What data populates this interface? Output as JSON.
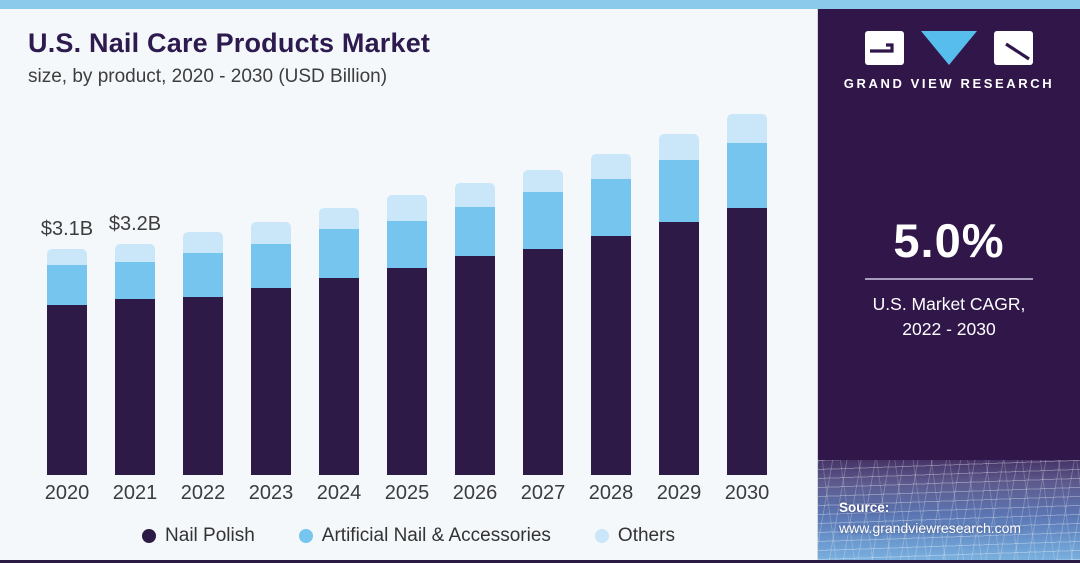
{
  "header": {
    "title": "U.S. Nail Care Products Market",
    "subtitle": "size, by product, 2020 - 2030 (USD Billion)"
  },
  "branding": {
    "logo_text": "GRAND VIEW RESEARCH"
  },
  "stats": {
    "cagr_value": "5.0%",
    "cagr_label_line1": "U.S. Market CAGR,",
    "cagr_label_line2": "2022 - 2030"
  },
  "source": {
    "label": "Source:",
    "url": "www.grandviewresearch.com"
  },
  "colors": {
    "accent_strip": "#8ccaeb",
    "panel_background": "#31164a",
    "chart_background": "#f4f8fb",
    "title_text": "#2d1a4e",
    "logo_triangle": "#56bdec"
  },
  "chart_data": {
    "type": "bar",
    "stacked": true,
    "title": "U.S. Nail Care Products Market size, by product, 2020 - 2030 (USD Billion)",
    "unit": "USD Billion",
    "categories": [
      "2020",
      "2021",
      "2022",
      "2023",
      "2024",
      "2025",
      "2026",
      "2027",
      "2028",
      "2029",
      "2030"
    ],
    "series": [
      {
        "name": "Nail Polish",
        "color": "#2e1a47",
        "values": [
          2.33,
          2.4,
          2.44,
          2.57,
          2.7,
          2.84,
          3.0,
          3.1,
          3.28,
          3.47,
          3.65
        ]
      },
      {
        "name": "Artificial Nail & Accessories",
        "color": "#76c5ef",
        "values": [
          0.55,
          0.51,
          0.6,
          0.6,
          0.67,
          0.64,
          0.67,
          0.78,
          0.78,
          0.84,
          0.89
        ]
      },
      {
        "name": "Others",
        "color": "#c9e7f8",
        "values": [
          0.22,
          0.25,
          0.29,
          0.3,
          0.29,
          0.36,
          0.33,
          0.3,
          0.34,
          0.36,
          0.4
        ]
      }
    ],
    "totals": [
      3.1,
      3.16,
      3.33,
      3.47,
      3.66,
      3.84,
      4.0,
      4.18,
      4.4,
      4.67,
      4.94
    ],
    "annotations": [
      {
        "category_index": 0,
        "text": "$3.1B"
      },
      {
        "category_index": 1,
        "text": "$3.2B"
      }
    ],
    "xlabel": "",
    "ylabel": "",
    "ylim": [
      0,
      5.2
    ],
    "grid": false,
    "legend_position": "bottom",
    "y_axis_shown": false
  }
}
